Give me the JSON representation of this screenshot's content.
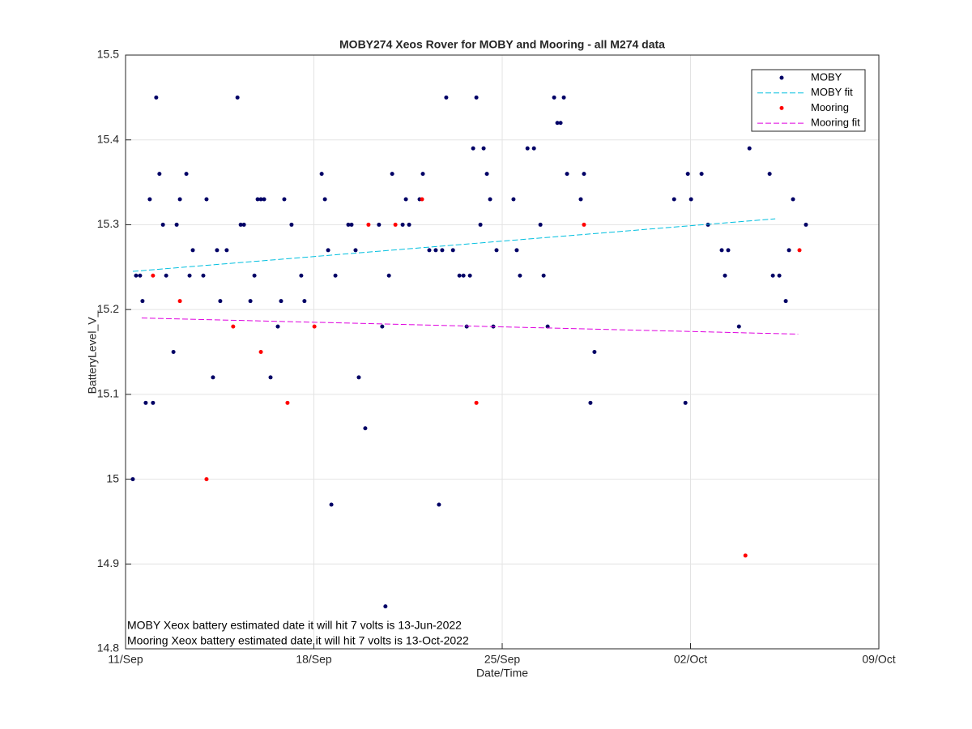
{
  "chart_data": {
    "type": "scatter",
    "title": "MOBY274 Xeos Rover for MOBY and Mooring - all M274 data",
    "x_label": "Date/Time",
    "y_label": "BatteryLevel_V_",
    "xlim": [
      0,
      28
    ],
    "xticks": [
      {
        "value": 0,
        "label": "11/Sep"
      },
      {
        "value": 7,
        "label": "18/Sep"
      },
      {
        "value": 14,
        "label": "25/Sep"
      },
      {
        "value": 21,
        "label": "02/Oct"
      },
      {
        "value": 28,
        "label": "09/Oct"
      }
    ],
    "ylim": [
      14.8,
      15.5
    ],
    "yticks": [
      14.8,
      14.9,
      15,
      15.1,
      15.2,
      15.3,
      15.4,
      15.5
    ],
    "grid": true,
    "legend": "upper right",
    "annotations": [
      "MOBY Xeox battery estimated date it will hit 7 volts is 13-Jun-2022",
      "Mooring Xeox battery estimated date it will hit 7 volts is 13-Oct-2022"
    ],
    "series": [
      {
        "name": "MOBY",
        "color": "#000066",
        "style": "dots",
        "x": [
          0.27,
          0.39,
          0.54,
          0.63,
          0.75,
          0.9,
          1.02,
          1.14,
          1.26,
          1.39,
          1.51,
          1.78,
          1.9,
          2.02,
          2.26,
          2.38,
          2.5,
          2.89,
          3.01,
          3.25,
          3.4,
          3.52,
          3.76,
          4.16,
          4.28,
          4.4,
          4.64,
          4.79,
          4.91,
          5.03,
          5.15,
          5.39,
          5.66,
          5.78,
          5.9,
          6.17,
          6.53,
          6.65,
          7.29,
          7.41,
          7.53,
          7.65,
          7.8,
          8.28,
          8.4,
          8.55,
          8.67,
          8.91,
          9.42,
          9.54,
          9.66,
          9.79,
          9.91,
          10.3,
          10.42,
          10.54,
          10.93,
          11.05,
          11.29,
          11.53,
          11.65,
          11.77,
          11.92,
          12.17,
          12.41,
          12.56,
          12.68,
          12.8,
          12.92,
          13.04,
          13.19,
          13.31,
          13.43,
          13.55,
          13.67,
          13.79,
          14.42,
          14.54,
          14.66,
          14.94,
          15.18,
          15.42,
          15.54,
          15.69,
          15.93,
          16.05,
          16.17,
          16.29,
          16.41,
          16.92,
          17.04,
          17.28,
          17.43,
          20.39,
          20.81,
          20.9,
          21.02,
          21.41,
          21.65,
          22.16,
          22.28,
          22.4,
          22.8,
          23.19,
          23.94,
          24.06,
          24.3,
          24.54,
          24.66,
          24.81,
          25.29
        ],
        "values": [
          15.0,
          15.24,
          15.24,
          15.21,
          15.09,
          15.33,
          15.09,
          15.45,
          15.36,
          15.3,
          15.24,
          15.15,
          15.3,
          15.33,
          15.36,
          15.24,
          15.27,
          15.24,
          15.33,
          15.12,
          15.27,
          15.21,
          15.27,
          15.45,
          15.3,
          15.3,
          15.21,
          15.24,
          15.33,
          15.33,
          15.33,
          15.12,
          15.18,
          15.21,
          15.33,
          15.3,
          15.24,
          15.21,
          15.36,
          15.33,
          15.27,
          14.97,
          15.24,
          15.3,
          15.3,
          15.27,
          15.12,
          15.06,
          15.3,
          15.18,
          14.85,
          15.24,
          15.36,
          15.3,
          15.33,
          15.3,
          15.33,
          15.36,
          15.27,
          15.27,
          14.97,
          15.27,
          15.45,
          15.27,
          15.24,
          15.24,
          15.18,
          15.24,
          15.39,
          15.45,
          15.3,
          15.39,
          15.36,
          15.33,
          15.18,
          15.27,
          15.33,
          15.27,
          15.24,
          15.39,
          15.39,
          15.3,
          15.24,
          15.18,
          15.45,
          15.42,
          15.42,
          15.45,
          15.36,
          15.33,
          15.36,
          15.09,
          15.15,
          15.33,
          15.09,
          15.36,
          15.33,
          15.36,
          15.3,
          15.27,
          15.24,
          15.27,
          15.18,
          15.39,
          15.36,
          15.24,
          15.24,
          15.21,
          15.27,
          15.33,
          15.3
        ]
      },
      {
        "name": "MOBY fit",
        "color": "#00bfdf",
        "style": "dashed",
        "x": [
          0.27,
          24.15
        ],
        "values": [
          15.245,
          15.307
        ]
      },
      {
        "name": "Mooring",
        "color": "#ff0000",
        "style": "dots",
        "x": [
          1.02,
          2.02,
          3.01,
          4.0,
          5.03,
          6.02,
          7.02,
          9.03,
          10.03,
          11.02,
          13.04,
          17.04,
          23.04,
          25.05
        ],
        "values": [
          15.24,
          15.21,
          15.0,
          15.18,
          15.15,
          15.09,
          15.18,
          15.3,
          15.3,
          15.33,
          15.09,
          15.3,
          14.91,
          15.27
        ]
      },
      {
        "name": "Mooring fit",
        "color": "#df00df",
        "style": "dashed",
        "x": [
          0.6,
          25.0
        ],
        "values": [
          15.19,
          15.171
        ]
      }
    ]
  }
}
